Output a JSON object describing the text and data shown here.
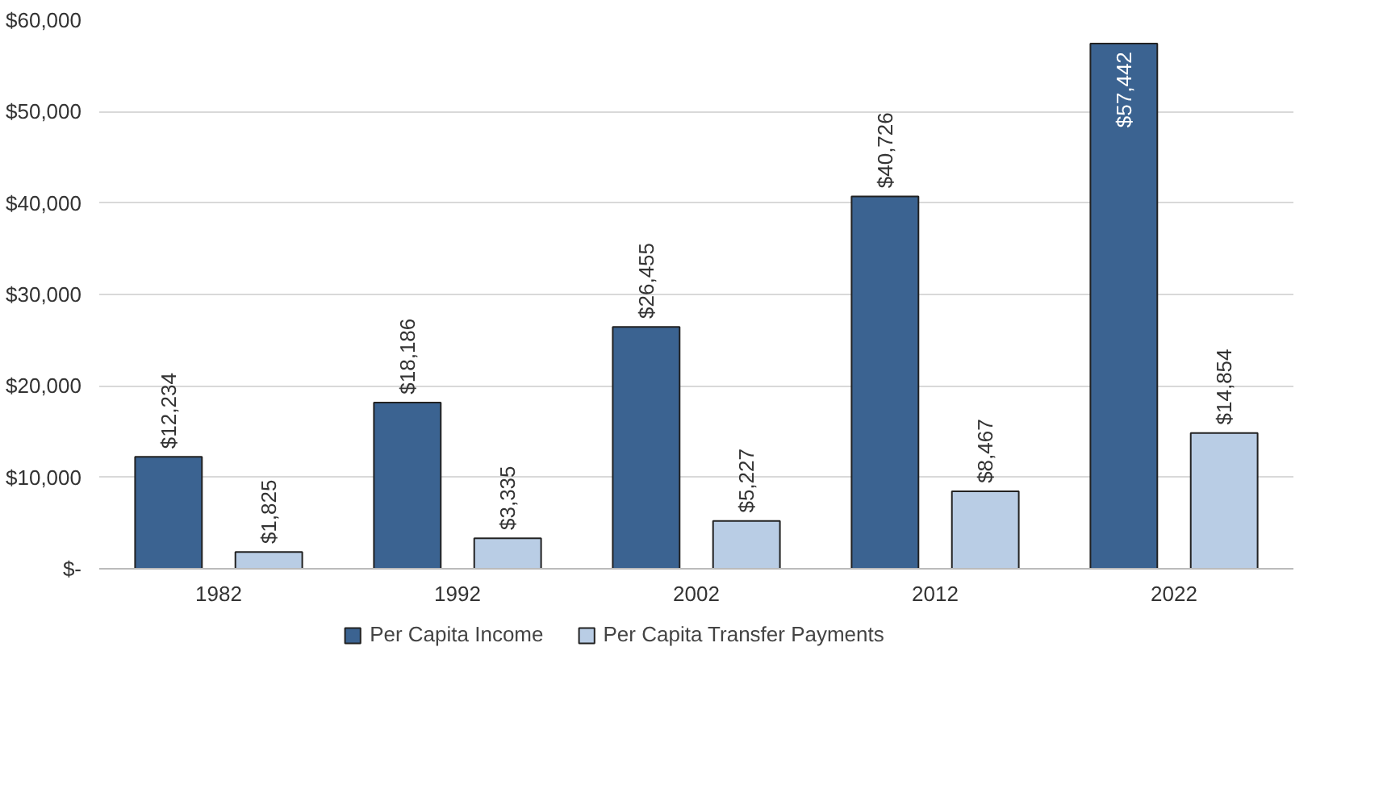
{
  "chart_data": {
    "type": "bar",
    "categories": [
      "1982",
      "1992",
      "2002",
      "2012",
      "2022"
    ],
    "series": [
      {
        "name": "Per Capita Income",
        "color": "#3b6391",
        "values": [
          12234,
          18186,
          26455,
          40726,
          57442
        ],
        "value_labels": [
          "$12,234",
          "$18,186",
          "$26,455",
          "$40,726",
          "$57,442"
        ]
      },
      {
        "name": "Per Capita Transfer Payments",
        "color": "#b9cde5",
        "values": [
          1825,
          3335,
          5227,
          8467,
          14854
        ],
        "value_labels": [
          "$1,825",
          "$3,335",
          "$5,227",
          "$8,467",
          "$14,854"
        ]
      }
    ],
    "ylim": [
      0,
      60000
    ],
    "yticks": [
      {
        "value": 0,
        "label": "$-"
      },
      {
        "value": 10000,
        "label": "$10,000"
      },
      {
        "value": 20000,
        "label": "$20,000"
      },
      {
        "value": 30000,
        "label": "$30,000"
      },
      {
        "value": 40000,
        "label": "$40,000"
      },
      {
        "value": 50000,
        "label": "$50,000"
      },
      {
        "value": 60000,
        "label": "$60,000"
      }
    ],
    "grid": "y",
    "legend": "bottom"
  }
}
